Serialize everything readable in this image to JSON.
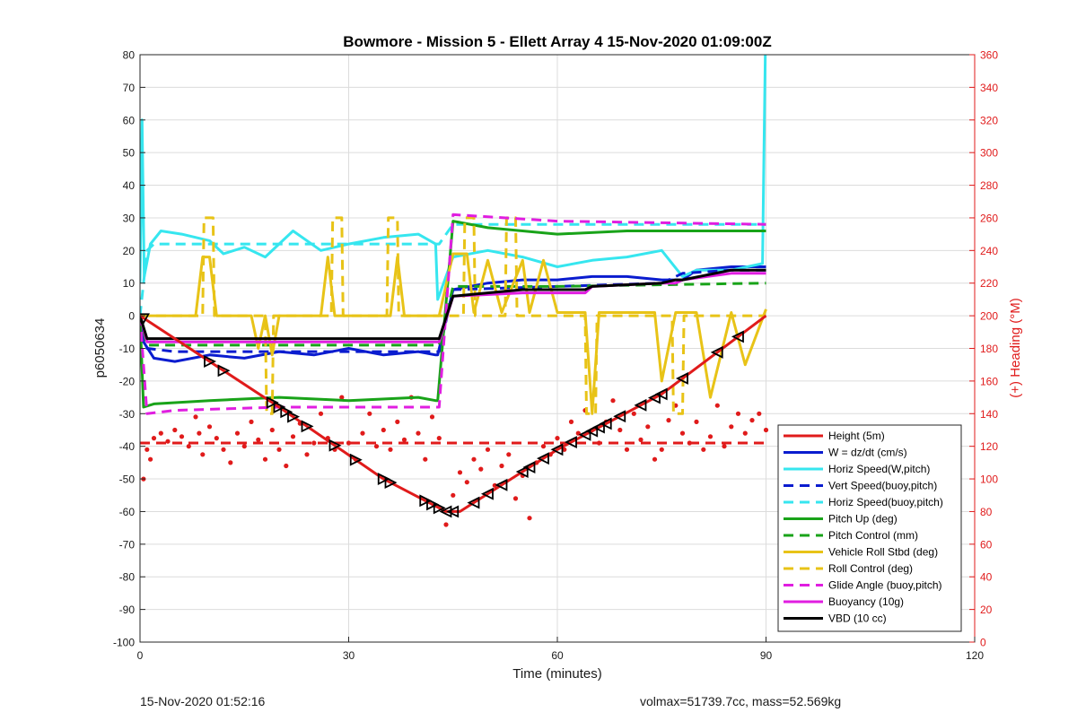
{
  "chart_data": {
    "type": "line",
    "title": "Bowmore - Mission 5 - Ellett Array 4 15-Nov-2020 01:09:00Z",
    "xlabel": "Time (minutes)",
    "ylabel_left": "p6050634",
    "ylabel_right": "(+) Heading (°M)",
    "xlim": [
      0,
      120
    ],
    "ylim_left": [
      -100,
      80
    ],
    "ylim_right": [
      0,
      360
    ],
    "xticks": [
      0,
      30,
      60,
      90,
      120
    ],
    "yticks_left": [
      -100,
      -90,
      -80,
      -70,
      -60,
      -50,
      -40,
      -30,
      -20,
      -10,
      0,
      10,
      20,
      30,
      40,
      50,
      60,
      70,
      80
    ],
    "yticks_right": [
      0,
      20,
      40,
      60,
      80,
      100,
      120,
      140,
      160,
      180,
      200,
      220,
      240,
      260,
      280,
      300,
      320,
      340,
      360
    ],
    "grid": true,
    "legend_position": "bottom-right",
    "colors": {
      "red": "#e01b1b",
      "blue": "#0a1ccf",
      "cyan": "#36e6ef",
      "green": "#19a319",
      "yellow": "#e8c317",
      "magenta": "#e01ee0",
      "black": "#000000",
      "right_axis": "#e01b1b"
    },
    "series": [
      {
        "name": "Height (5m)",
        "color": "red",
        "dash": false,
        "axis": "left",
        "x": [
          0,
          20,
          35,
          44,
          46,
          60,
          75,
          85,
          90
        ],
        "y": [
          0,
          -28,
          -50,
          -60,
          -60,
          -41,
          -24,
          -8,
          0
        ]
      },
      {
        "name": "W = dz/dt (cm/s)",
        "color": "blue",
        "dash": false,
        "axis": "left",
        "x": [
          0,
          0.5,
          2,
          5,
          10,
          15,
          20,
          25,
          30,
          35,
          40,
          42.5,
          42.8,
          45,
          50,
          55,
          60,
          65,
          70,
          75,
          78,
          80,
          85,
          90
        ],
        "y": [
          0,
          -8,
          -13,
          -14,
          -12,
          -13,
          -11,
          -12,
          -10,
          -12,
          -11,
          -12,
          -12,
          8,
          10,
          11,
          11,
          12,
          12,
          11,
          11,
          14,
          15,
          15
        ]
      },
      {
        "name": "Horiz Speed(W,pitch)",
        "color": "cyan",
        "dash": false,
        "axis": "left",
        "x": [
          0,
          0.3,
          0.6,
          1.5,
          3,
          6,
          10,
          12,
          15,
          18,
          22,
          26,
          30,
          35,
          40,
          42.5,
          42.8,
          45,
          50,
          55,
          60,
          65,
          70,
          75,
          78,
          80,
          85,
          89.5,
          89.7,
          89.9
        ],
        "y": [
          10,
          60,
          12,
          22,
          26,
          25,
          23,
          19,
          21,
          18,
          26,
          20,
          22,
          24,
          25,
          22,
          5,
          18,
          20,
          18,
          15,
          17,
          18,
          20,
          12,
          14,
          14,
          16,
          50,
          80
        ]
      },
      {
        "name": "Vert Speed(buoy,pitch)",
        "color": "blue",
        "dash": true,
        "axis": "left",
        "x": [
          0,
          1,
          5,
          20,
          42.5,
          43,
          45,
          60,
          75,
          78,
          85,
          90
        ],
        "y": [
          0,
          -10,
          -11,
          -11,
          -11,
          -11,
          8,
          9,
          10,
          13,
          14,
          14
        ]
      },
      {
        "name": "Horiz Speed(buoy,pitch)",
        "color": "cyan",
        "dash": true,
        "axis": "left",
        "x": [
          0,
          1,
          2,
          10,
          42.5,
          43,
          45,
          60,
          90
        ],
        "y": [
          0,
          20,
          22,
          22,
          22,
          22,
          28,
          28,
          28
        ]
      },
      {
        "name": "Pitch Up (deg)",
        "color": "green",
        "dash": false,
        "axis": "left",
        "x": [
          0,
          0.5,
          2,
          10,
          20,
          30,
          40,
          42.5,
          42.8,
          45,
          50,
          60,
          70,
          80,
          90
        ],
        "y": [
          0,
          -28,
          -27,
          -26,
          -25,
          -26,
          -25,
          -26,
          -26,
          29,
          27,
          25,
          26,
          26,
          26
        ]
      },
      {
        "name": "Pitch Control (mm)",
        "color": "green",
        "dash": true,
        "axis": "left",
        "x": [
          0,
          1,
          20,
          42.5,
          43,
          45,
          60,
          90
        ],
        "y": [
          0,
          -9,
          -9,
          -9,
          -9,
          9,
          9,
          10
        ]
      },
      {
        "name": "Vehicle Roll Stbd (deg)",
        "color": "yellow",
        "dash": false,
        "axis": "left",
        "x": [
          0,
          2,
          8,
          9,
          10,
          11,
          12,
          16,
          17,
          18,
          19,
          20,
          22,
          26,
          27,
          28,
          30,
          36,
          37,
          38,
          42,
          43,
          45,
          47,
          48,
          50,
          52,
          55,
          56,
          58,
          60,
          64,
          65,
          66,
          70,
          74,
          75,
          77,
          78,
          80,
          82,
          85,
          87,
          90
        ],
        "y": [
          0,
          0,
          0,
          18,
          18,
          0,
          0,
          0,
          -10,
          0,
          -12,
          0,
          0,
          0,
          18,
          0,
          0,
          0,
          18,
          0,
          0,
          0,
          19,
          19,
          1,
          17,
          1,
          17,
          1,
          17,
          1,
          1,
          -30,
          1,
          1,
          1,
          -20,
          1,
          1,
          1,
          -25,
          1,
          -15,
          2
        ]
      },
      {
        "name": "Roll Control (deg)",
        "color": "yellow",
        "dash": true,
        "axis": "left",
        "x": [
          0,
          9,
          9.2,
          10.5,
          10.7,
          18,
          18.2,
          19,
          19.2,
          27.5,
          27.7,
          29,
          29.2,
          35.5,
          35.7,
          37,
          37.2,
          43,
          45,
          46.5,
          46.7,
          48,
          48.2,
          52.5,
          52.7,
          54,
          54.2,
          64,
          64.2,
          65.5,
          65.7,
          76.5,
          76.7,
          78,
          78.2,
          90
        ],
        "y": [
          0,
          0,
          30,
          30,
          0,
          0,
          -30,
          -30,
          0,
          0,
          30,
          30,
          0,
          0,
          30,
          30,
          0,
          0,
          0,
          0,
          30,
          30,
          0,
          0,
          30,
          30,
          0,
          0,
          -30,
          -30,
          0,
          0,
          -30,
          -30,
          0,
          0
        ]
      },
      {
        "name": "Glide Angle (buoy,pitch)",
        "color": "magenta",
        "dash": true,
        "axis": "left",
        "x": [
          0,
          1,
          5,
          20,
          42.5,
          43,
          45,
          60,
          90
        ],
        "y": [
          0,
          -30,
          -29,
          -28,
          -28,
          -28,
          31,
          29,
          28
        ]
      },
      {
        "name": "Buoyancy (10g)",
        "color": "magenta",
        "dash": false,
        "axis": "left",
        "x": [
          0,
          1,
          5,
          20,
          42.5,
          43,
          45,
          55,
          60,
          64,
          65,
          75,
          77,
          78,
          85,
          90
        ],
        "y": [
          0,
          -8,
          -8,
          -8,
          -8,
          -8,
          6,
          7,
          7,
          7,
          9,
          10,
          10,
          11,
          13,
          13
        ]
      },
      {
        "name": "VBD (10 cc)",
        "color": "black",
        "dash": false,
        "axis": "left",
        "x": [
          0,
          1,
          5,
          20,
          42.5,
          43,
          45,
          50,
          55,
          64,
          65,
          75,
          77,
          78,
          85,
          90
        ],
        "y": [
          0,
          -7,
          -7,
          -7,
          -7,
          -7,
          6,
          7,
          8,
          8,
          9,
          10,
          11,
          11,
          14,
          14
        ]
      },
      {
        "name": "",
        "color": "red",
        "dash": true,
        "axis": "right",
        "x": [
          0,
          90
        ],
        "y": [
          122,
          122
        ]
      }
    ],
    "heading_points": {
      "color": "red",
      "axis": "right",
      "x": [
        0.5,
        1,
        1.5,
        2,
        3,
        4,
        5,
        6,
        7,
        8,
        8.5,
        9,
        10,
        11,
        12,
        13,
        14,
        15,
        16,
        17,
        18,
        19,
        20,
        21,
        22,
        23,
        24,
        25,
        26,
        27,
        28,
        29,
        30,
        31,
        32,
        33,
        34,
        35,
        36,
        37,
        38,
        39,
        40,
        41,
        42,
        43,
        44,
        45,
        46,
        47,
        48,
        49,
        50,
        51,
        52,
        53,
        54,
        55,
        56,
        57,
        58,
        59,
        60,
        61,
        62,
        63,
        64,
        65,
        66,
        67,
        68,
        69,
        70,
        71,
        72,
        73,
        74,
        75,
        76,
        77,
        78,
        79,
        80,
        81,
        82,
        83,
        84,
        85,
        86,
        87,
        88,
        89,
        90
      ],
      "y": [
        100,
        118,
        112,
        125,
        128,
        123,
        130,
        126,
        120,
        138,
        128,
        115,
        132,
        125,
        118,
        110,
        128,
        120,
        135,
        124,
        112,
        130,
        118,
        108,
        126,
        134,
        115,
        122,
        140,
        125,
        118,
        150,
        122,
        112,
        128,
        140,
        120,
        130,
        118,
        135,
        124,
        150,
        128,
        112,
        138,
        125,
        72,
        90,
        104,
        98,
        112,
        106,
        118,
        96,
        108,
        115,
        88,
        102,
        76,
        110,
        120,
        115,
        125,
        118,
        135,
        128,
        142,
        130,
        122,
        135,
        148,
        130,
        118,
        140,
        124,
        132,
        112,
        118,
        136,
        145,
        128,
        122,
        135,
        118,
        126,
        145,
        120,
        132,
        140,
        128,
        136,
        140,
        130
      ]
    },
    "markers": {
      "color": "black",
      "x": [
        0.5,
        10,
        12,
        19,
        20,
        21,
        22,
        24,
        28,
        31,
        35,
        36,
        41,
        42,
        43,
        44,
        45,
        48,
        50,
        52,
        55,
        56,
        58,
        60,
        62,
        64,
        65,
        66,
        67,
        69,
        72,
        74,
        75,
        78,
        83,
        86
      ]
    }
  },
  "footer": {
    "left": "15-Nov-2020 01:52:16",
    "right": "volmax=51739.7cc, mass=52.569kg"
  }
}
